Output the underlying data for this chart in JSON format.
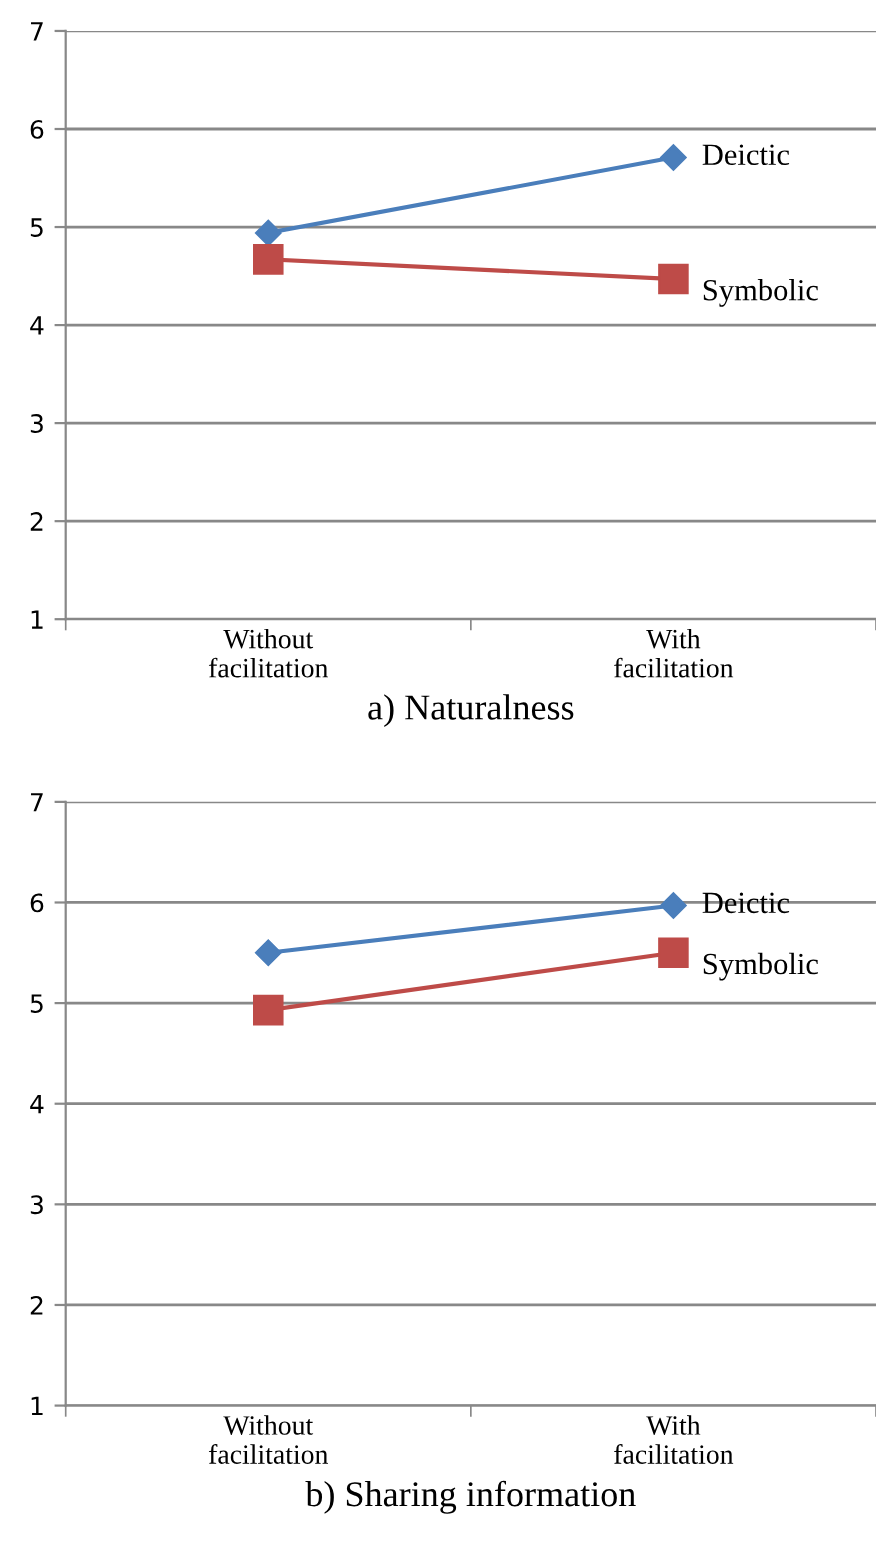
{
  "chart_data": [
    {
      "type": "line",
      "title": "a) Naturalness",
      "categories": [
        "Without\nfacilitation",
        "With\nfacilitation"
      ],
      "series": [
        {
          "name": "Deictic",
          "color": "#4a7ebb",
          "marker": "diamond",
          "values": [
            4.94,
            5.71
          ]
        },
        {
          "name": "Symbolic",
          "color": "#be4b48",
          "marker": "square",
          "values": [
            4.67,
            4.47
          ]
        }
      ],
      "ylim": [
        1,
        7
      ],
      "yticks": [
        1,
        2,
        3,
        4,
        5,
        6,
        7
      ],
      "grid": "y",
      "legend": false
    },
    {
      "type": "line",
      "title": "b) Sharing information",
      "categories": [
        "Without\nfacilitation",
        "With\nfacilitation"
      ],
      "series": [
        {
          "name": "Deictic",
          "color": "#4a7ebb",
          "marker": "diamond",
          "values": [
            5.5,
            5.97
          ]
        },
        {
          "name": "Symbolic",
          "color": "#be4b48",
          "marker": "square",
          "values": [
            4.93,
            5.5
          ]
        }
      ],
      "ylim": [
        1,
        7
      ],
      "yticks": [
        1,
        2,
        3,
        4,
        5,
        6,
        7
      ],
      "grid": "y",
      "legend": false
    }
  ]
}
